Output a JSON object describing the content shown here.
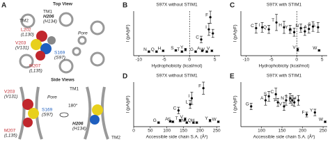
{
  "panel_a": {
    "letter": "A",
    "top_view": "Top View",
    "tm1": "TM1",
    "tm2": "TM2",
    "h206": "H206",
    "h134": "(H134)",
    "l202": "L202",
    "l130": "(L130)",
    "v203": "V203",
    "v131": "(V131)",
    "s169": "S169",
    "s97": "(S97)",
    "m207": "M207",
    "l135": "(L135)",
    "pore": "Pore",
    "side_views": "Side Views",
    "v203b": "V203",
    "v131b": "(V131)",
    "pore2": "Pore",
    "tm1b": "TM1",
    "s169b": "S169",
    "s97b": "(S97)",
    "rot": "180°",
    "h206b": "H206",
    "h134b": "(H134)",
    "m207b": "M207",
    "l135b": "(L135)",
    "tm2b": "TM2"
  },
  "chart_data": [
    {
      "type": "scatter",
      "panel": "B",
      "title": "S97X without STIM1",
      "xlabel": "Hydrophobicity (kcal/mol)",
      "ylabel": "I (pA/pF)",
      "xlim": [
        -11,
        6
      ],
      "xticks": [
        -10,
        -5,
        0,
        5
      ],
      "ylim": [
        -0.1,
        1
      ],
      "reference_x": 0,
      "point_labels": [
        "N",
        "Q",
        "H",
        "S",
        "T",
        "Y",
        "G",
        "A",
        "W",
        "V",
        "C",
        "I",
        "F",
        "L"
      ],
      "x": [
        -8,
        -6.5,
        -5.2,
        -2.7,
        -1.5,
        -0.8,
        1.2,
        2.5,
        3.4,
        4.4,
        2.3,
        3.8,
        4.1,
        4.6
      ],
      "values": [
        0,
        0,
        0.02,
        0.03,
        0,
        0.05,
        0,
        0.02,
        0,
        0.02,
        0.3,
        0.55,
        0.85,
        0.45
      ],
      "errors": [
        0.02,
        0.02,
        0.02,
        0.02,
        0.02,
        0.03,
        0.02,
        0.02,
        0.02,
        0.02,
        0.08,
        0.15,
        0.15,
        0.1
      ]
    },
    {
      "type": "scatter",
      "panel": "C",
      "title": "S97X with STIM1",
      "xlabel": "Hydrophobicity (kcal/mol)",
      "ylabel": "I (pA/pF)",
      "xlim": [
        -11,
        6
      ],
      "xticks": [
        -10,
        -5,
        0,
        5
      ],
      "ylim": [
        -0.1,
        1
      ],
      "reference_x": 0,
      "point_labels": [
        "C",
        "I",
        "Q",
        "T",
        "H",
        "Y",
        "G",
        "N",
        "F",
        "A",
        "S",
        "L",
        "V",
        "W"
      ],
      "x": [
        -8,
        -6.8,
        -5.5,
        -4,
        -2.5,
        -1.3,
        -0.5,
        0.8,
        1.6,
        2.4,
        3.2,
        4.2,
        0.2,
        4.4
      ],
      "values": [
        0.58,
        0.6,
        0.55,
        0.72,
        0.6,
        0.55,
        0.48,
        0.58,
        0.5,
        0.56,
        0.62,
        0.6,
        0.05,
        0.03
      ],
      "errors": [
        0.12,
        0.12,
        0.1,
        0.2,
        0.15,
        0.1,
        0.1,
        0.1,
        0.1,
        0.1,
        0.12,
        0.12,
        0.04,
        0.02
      ]
    },
    {
      "type": "scatter",
      "panel": "D",
      "title": "S97X without STIM1",
      "xlabel": "Accessible side chain S.A. (Å²)",
      "ylabel": "I (pA/pF)",
      "xlim": [
        0,
        260
      ],
      "xticks": [
        0,
        50,
        100,
        150,
        200,
        250
      ],
      "ylim": [
        -0.1,
        1
      ],
      "point_labels": [
        "G",
        "A",
        "S",
        "T",
        "C",
        "V",
        "N",
        "L",
        "I",
        "Q",
        "H",
        "F",
        "Y",
        "W"
      ],
      "x": [
        75,
        110,
        118,
        140,
        135,
        155,
        160,
        170,
        175,
        180,
        190,
        210,
        230,
        255
      ],
      "values": [
        0,
        0.03,
        0.02,
        0.05,
        0.3,
        0.08,
        0,
        0.45,
        0.6,
        0,
        0,
        0.85,
        0.05,
        0.02
      ],
      "errors": [
        0.02,
        0.02,
        0.02,
        0.03,
        0.08,
        0.04,
        0.02,
        0.1,
        0.15,
        0.02,
        0.02,
        0.15,
        0.03,
        0.02
      ]
    },
    {
      "type": "scatter",
      "panel": "E",
      "title": "S97X with STIM1",
      "xlabel": "Accessible side chain S.A. (Å²)",
      "ylabel": "I (pA/pF)",
      "xlim": [
        50,
        260
      ],
      "xticks": [
        100,
        150,
        200,
        250
      ],
      "ylim": [
        -0.1,
        1
      ],
      "point_labels": [
        "G",
        "A",
        "S",
        "C",
        "T",
        "V",
        "N",
        "L",
        "I",
        "Q",
        "H",
        "F",
        "Y",
        "W"
      ],
      "x": [
        75,
        110,
        118,
        135,
        140,
        155,
        160,
        170,
        175,
        180,
        190,
        210,
        230,
        255
      ],
      "values": [
        0.4,
        0.55,
        0.65,
        0.7,
        0.5,
        0.4,
        0.55,
        0.6,
        0.55,
        0.5,
        0.55,
        0.2,
        0.25,
        0.02
      ],
      "errors": [
        0.08,
        0.12,
        0.12,
        0.15,
        0.1,
        0.1,
        0.12,
        0.12,
        0.12,
        0.1,
        0.12,
        0.06,
        0.08,
        0.02
      ]
    }
  ]
}
